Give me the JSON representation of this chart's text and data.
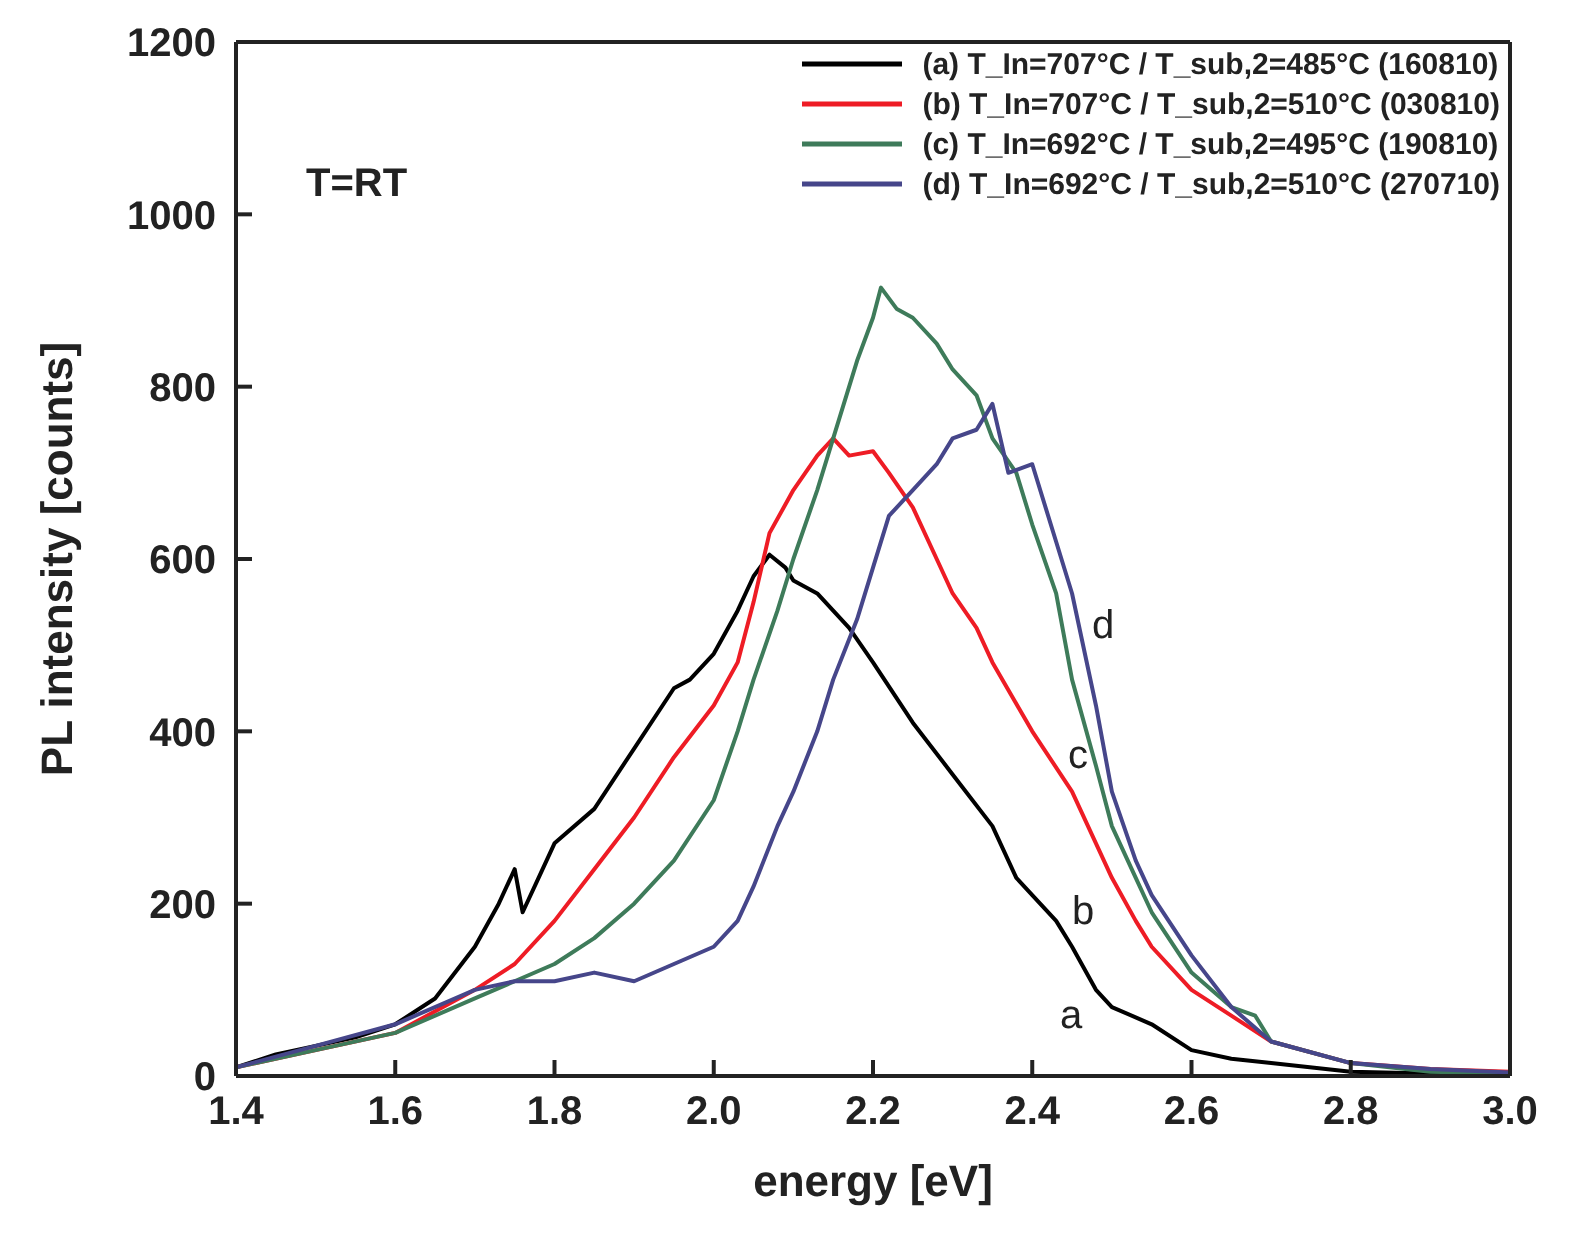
{
  "chart_data": {
    "type": "line",
    "xlabel": "energy [eV]",
    "ylabel": "PL intensity [counts]",
    "xlim": [
      1.4,
      3.0
    ],
    "ylim": [
      0,
      1200
    ],
    "xticks": [
      {
        "value": 1.4,
        "label": "1.4"
      },
      {
        "value": 1.6,
        "label": "1.6"
      },
      {
        "value": 1.8,
        "label": "1.8"
      },
      {
        "value": 2,
        "label": "2.0"
      },
      {
        "value": 2.2,
        "label": "2.2"
      },
      {
        "value": 2.4,
        "label": "2.4"
      },
      {
        "value": 2.6,
        "label": "2.6"
      },
      {
        "value": 2.8,
        "label": "2.8"
      },
      {
        "value": 3,
        "label": "3.0"
      }
    ],
    "yticks": [
      0,
      200,
      400,
      600,
      800,
      1000,
      1200
    ],
    "grid": false,
    "legend": "top right",
    "marker": "none",
    "line_style": "solid",
    "annotations": [
      "T=RT",
      "a",
      "b",
      "c",
      "d"
    ],
    "series": [
      {
        "name": "(a) T_In=707°C / T_sub,2=485°C (160810)",
        "color": "#000000",
        "x": [
          1.4,
          1.45,
          1.5,
          1.55,
          1.6,
          1.65,
          1.7,
          1.73,
          1.75,
          1.76,
          1.78,
          1.8,
          1.85,
          1.9,
          1.95,
          1.97,
          2.0,
          2.03,
          2.05,
          2.07,
          2.09,
          2.1,
          2.13,
          2.17,
          2.2,
          2.25,
          2.3,
          2.35,
          2.38,
          2.4,
          2.43,
          2.45,
          2.48,
          2.5,
          2.55,
          2.6,
          2.65,
          2.7,
          2.8,
          2.9,
          3.0
        ],
        "values": [
          10,
          25,
          35,
          45,
          60,
          90,
          150,
          200,
          240,
          190,
          230,
          270,
          310,
          380,
          450,
          460,
          490,
          540,
          580,
          605,
          590,
          575,
          560,
          520,
          480,
          410,
          350,
          290,
          230,
          210,
          180,
          150,
          100,
          80,
          60,
          30,
          20,
          15,
          5,
          3,
          2
        ]
      },
      {
        "name": "(b) T_In=707°C / T_sub,2=510°C (030810)",
        "color": "#ee1c25",
        "x": [
          1.4,
          1.5,
          1.6,
          1.7,
          1.75,
          1.8,
          1.85,
          1.9,
          1.95,
          2.0,
          2.03,
          2.05,
          2.07,
          2.1,
          2.13,
          2.15,
          2.17,
          2.2,
          2.22,
          2.25,
          2.28,
          2.3,
          2.33,
          2.35,
          2.4,
          2.45,
          2.48,
          2.5,
          2.53,
          2.55,
          2.6,
          2.65,
          2.7,
          2.8,
          2.9,
          3.0
        ],
        "values": [
          10,
          30,
          50,
          100,
          130,
          180,
          240,
          300,
          370,
          430,
          480,
          550,
          630,
          680,
          720,
          740,
          720,
          725,
          700,
          660,
          600,
          560,
          520,
          480,
          400,
          330,
          270,
          230,
          180,
          150,
          100,
          70,
          40,
          15,
          8,
          5
        ]
      },
      {
        "name": "(c) T_In=692°C / T_sub,2=495°C (190810)",
        "color": "#3e7b5a",
        "x": [
          1.4,
          1.5,
          1.6,
          1.7,
          1.8,
          1.85,
          1.9,
          1.95,
          2.0,
          2.03,
          2.05,
          2.08,
          2.1,
          2.13,
          2.15,
          2.18,
          2.2,
          2.21,
          2.23,
          2.25,
          2.28,
          2.3,
          2.33,
          2.35,
          2.38,
          2.4,
          2.43,
          2.45,
          2.48,
          2.5,
          2.53,
          2.55,
          2.6,
          2.65,
          2.68,
          2.7,
          2.8,
          2.9,
          3.0
        ],
        "values": [
          10,
          30,
          50,
          90,
          130,
          160,
          200,
          250,
          320,
          400,
          460,
          540,
          600,
          680,
          740,
          830,
          880,
          915,
          890,
          880,
          850,
          820,
          790,
          740,
          700,
          640,
          560,
          460,
          360,
          290,
          230,
          190,
          120,
          80,
          70,
          40,
          15,
          5,
          3
        ]
      },
      {
        "name": "(d) T_In=692°C / T_sub,2=510°C (270710)",
        "color": "#46468a",
        "x": [
          1.4,
          1.5,
          1.6,
          1.7,
          1.75,
          1.8,
          1.85,
          1.9,
          1.95,
          2.0,
          2.03,
          2.05,
          2.08,
          2.1,
          2.13,
          2.15,
          2.18,
          2.2,
          2.22,
          2.25,
          2.28,
          2.3,
          2.33,
          2.35,
          2.37,
          2.4,
          2.43,
          2.45,
          2.48,
          2.5,
          2.53,
          2.55,
          2.6,
          2.65,
          2.7,
          2.8,
          2.9,
          3.0
        ],
        "values": [
          10,
          35,
          60,
          100,
          110,
          110,
          120,
          110,
          130,
          150,
          180,
          220,
          290,
          330,
          400,
          460,
          530,
          590,
          650,
          680,
          710,
          740,
          750,
          780,
          700,
          710,
          620,
          560,
          430,
          330,
          250,
          210,
          140,
          80,
          40,
          15,
          8,
          4
        ]
      }
    ]
  }
}
